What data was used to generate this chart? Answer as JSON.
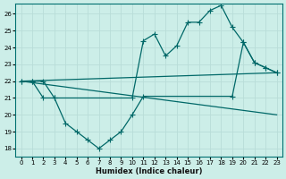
{
  "xlabel": "Humidex (Indice chaleur)",
  "bg_color": "#cceee8",
  "line_color": "#006868",
  "grid_color": "#b8ddd8",
  "xlim": [
    -0.5,
    23.5
  ],
  "ylim": [
    17.5,
    26.6
  ],
  "yticks": [
    18,
    19,
    20,
    21,
    22,
    23,
    24,
    25,
    26
  ],
  "xticks": [
    0,
    1,
    2,
    3,
    4,
    5,
    6,
    7,
    8,
    9,
    10,
    11,
    12,
    13,
    14,
    15,
    16,
    17,
    18,
    19,
    20,
    21,
    22,
    23
  ],
  "series": [
    {
      "x": [
        0,
        1,
        2,
        3,
        10,
        11,
        12,
        13,
        14,
        15,
        16,
        17,
        18,
        19,
        20,
        21,
        22,
        23
      ],
      "y": [
        22,
        22,
        22,
        21,
        21,
        24.4,
        24.8,
        23.5,
        24.1,
        25.5,
        25.5,
        26.2,
        26.5,
        25.2,
        24.3,
        23.1,
        22.8,
        22.5
      ],
      "has_markers": true
    },
    {
      "x": [
        0,
        1,
        2,
        3,
        4,
        5,
        6,
        7,
        8,
        9,
        10,
        11,
        19,
        20,
        21,
        22,
        23
      ],
      "y": [
        22,
        22,
        21,
        21,
        19.5,
        19.0,
        18.5,
        18.0,
        18.5,
        19.0,
        20.0,
        21.1,
        21.1,
        24.3,
        23.1,
        22.8,
        22.5
      ],
      "has_markers": true
    },
    {
      "x": [
        0,
        23
      ],
      "y": [
        22.0,
        22.5
      ],
      "has_markers": false
    },
    {
      "x": [
        0,
        23
      ],
      "y": [
        22.0,
        20.0
      ],
      "has_markers": false
    }
  ]
}
